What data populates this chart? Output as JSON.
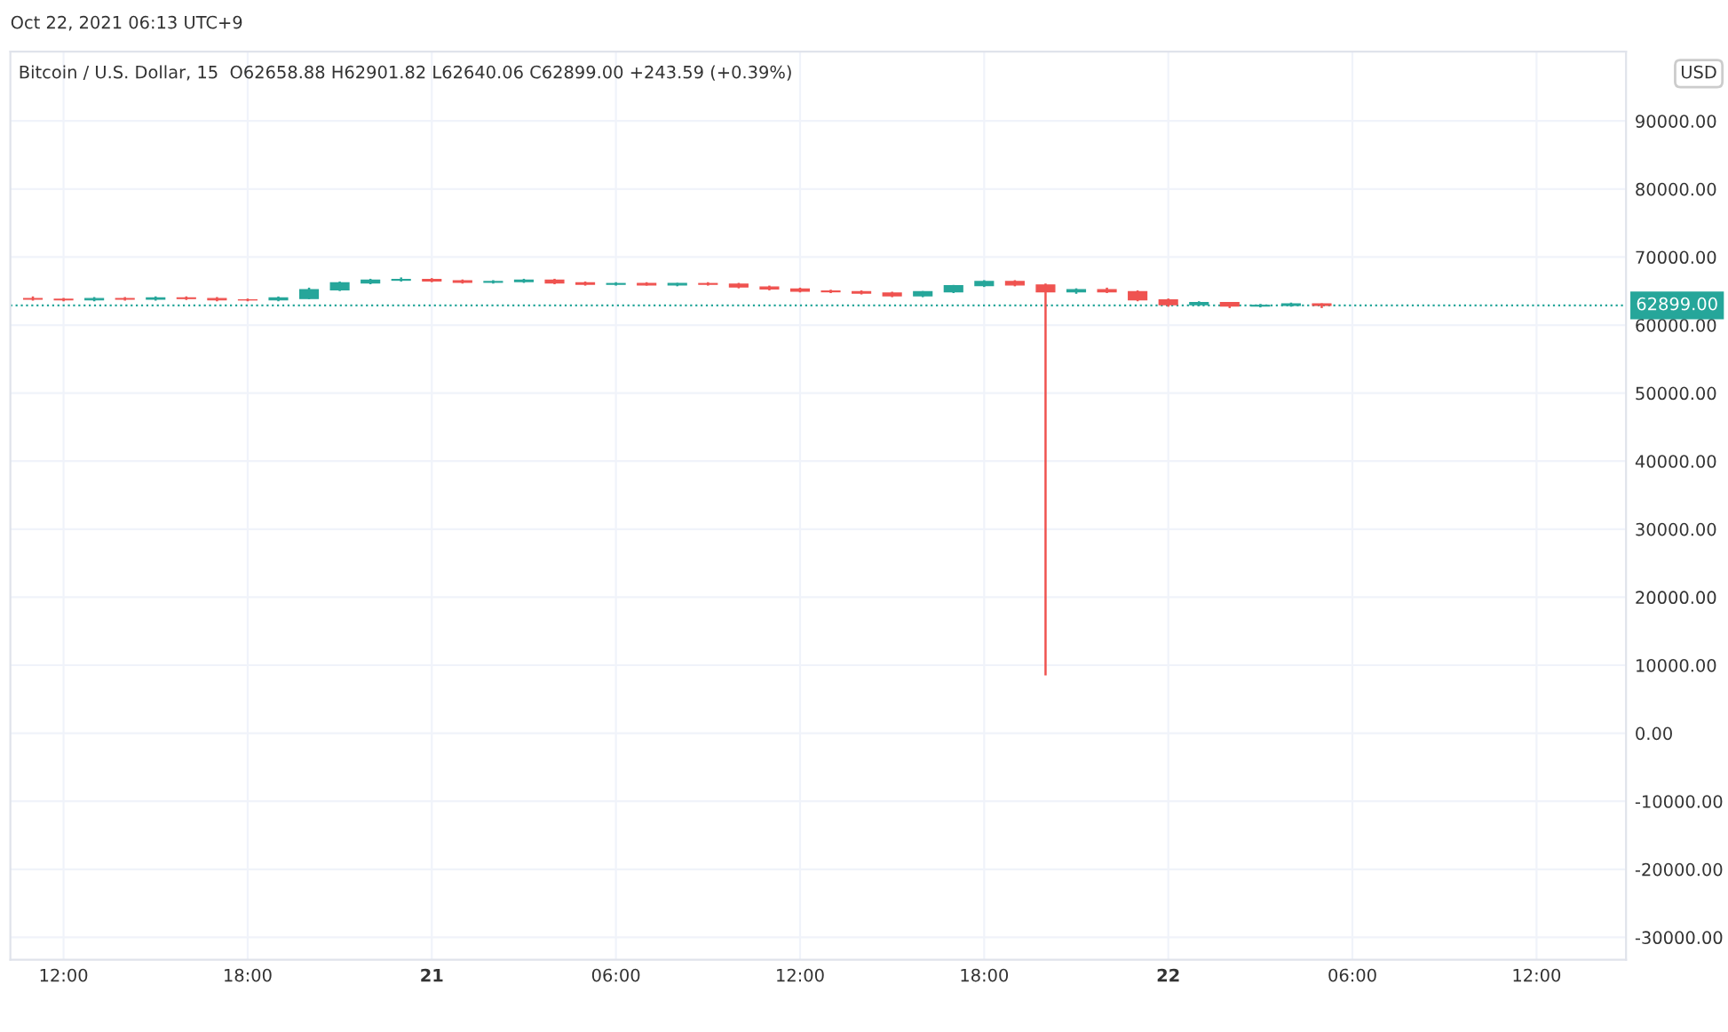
{
  "chart_data": {
    "type": "candlestick",
    "title": "Oct 22, 2021 06:13 UTC+9",
    "subtitle": "Bitcoin / U.S. Dollar, 15  O62658.88 H62901.82 L62640.06 C62899.00 +243.59 (+0.39%)",
    "x": [
      "2021-10-20T11:00",
      "2021-10-20T12:00",
      "2021-10-20T13:00",
      "2021-10-20T14:00",
      "2021-10-20T15:00",
      "2021-10-20T16:00",
      "2021-10-20T17:00",
      "2021-10-20T18:00",
      "2021-10-20T19:00",
      "2021-10-20T20:00",
      "2021-10-20T21:00",
      "2021-10-20T22:00",
      "2021-10-20T23:00",
      "2021-10-21T00:00",
      "2021-10-21T01:00",
      "2021-10-21T02:00",
      "2021-10-21T03:00",
      "2021-10-21T04:00",
      "2021-10-21T05:00",
      "2021-10-21T06:00",
      "2021-10-21T07:00",
      "2021-10-21T08:00",
      "2021-10-21T09:00",
      "2021-10-21T10:00",
      "2021-10-21T11:00",
      "2021-10-21T12:00",
      "2021-10-21T13:00",
      "2021-10-21T14:00",
      "2021-10-21T15:00",
      "2021-10-21T16:00",
      "2021-10-21T17:00",
      "2021-10-21T18:00",
      "2021-10-21T19:00",
      "2021-10-21T20:00",
      "2021-10-21T21:00",
      "2021-10-21T22:00",
      "2021-10-21T23:00",
      "2021-10-22T00:00",
      "2021-10-22T01:00",
      "2021-10-22T02:00",
      "2021-10-22T03:00",
      "2021-10-22T04:00",
      "2021-10-22T05:00"
    ],
    "ohlc": [
      [
        63900,
        64200,
        63600,
        63800
      ],
      [
        63800,
        64000,
        63500,
        63700
      ],
      [
        63700,
        64100,
        63500,
        63900
      ],
      [
        63900,
        64100,
        63600,
        63800
      ],
      [
        63800,
        64200,
        63600,
        64000
      ],
      [
        64000,
        64200,
        63700,
        63900
      ],
      [
        63900,
        64100,
        63500,
        63700
      ],
      [
        63700,
        63900,
        63500,
        63700
      ],
      [
        63700,
        64200,
        63500,
        64000
      ],
      [
        63900,
        65500,
        63800,
        65200
      ],
      [
        65200,
        66400,
        65000,
        66200
      ],
      [
        66200,
        66800,
        66000,
        66600
      ],
      [
        66600,
        67000,
        66400,
        66700
      ],
      [
        66700,
        66900,
        66300,
        66500
      ],
      [
        66500,
        66700,
        66100,
        66300
      ],
      [
        66300,
        66600,
        66100,
        66400
      ],
      [
        66400,
        66800,
        66200,
        66600
      ],
      [
        66600,
        66800,
        66000,
        66200
      ],
      [
        66200,
        66400,
        65800,
        66000
      ],
      [
        66000,
        66300,
        65800,
        66100
      ],
      [
        66100,
        66300,
        65800,
        65900
      ],
      [
        65900,
        66200,
        65700,
        66100
      ],
      [
        66100,
        66300,
        65800,
        66000
      ],
      [
        66000,
        66200,
        65400,
        65600
      ],
      [
        65600,
        65800,
        65100,
        65300
      ],
      [
        65300,
        65500,
        64800,
        65000
      ],
      [
        65000,
        65200,
        64700,
        64900
      ],
      [
        64900,
        65100,
        64500,
        64700
      ],
      [
        64700,
        64900,
        64100,
        64300
      ],
      [
        64300,
        65000,
        64100,
        64900
      ],
      [
        64900,
        65900,
        64700,
        65800
      ],
      [
        65800,
        66600,
        65600,
        66400
      ],
      [
        66400,
        66600,
        65700,
        65900
      ],
      [
        65900,
        66100,
        8500,
        64900
      ],
      [
        64900,
        65400,
        64600,
        65200
      ],
      [
        65200,
        65500,
        64700,
        64900
      ],
      [
        64900,
        65100,
        63500,
        63700
      ],
      [
        63700,
        63900,
        62700,
        63000
      ],
      [
        63000,
        63500,
        62800,
        63300
      ],
      [
        63300,
        63400,
        62500,
        62800
      ],
      [
        62800,
        63100,
        62600,
        62900
      ],
      [
        62900,
        63300,
        62700,
        63100
      ],
      [
        63100,
        63200,
        62500,
        62899
      ]
    ],
    "colors": [
      "#ef5350",
      "#ef5350",
      "#26a69a",
      "#ef5350",
      "#26a69a",
      "#ef5350",
      "#ef5350",
      "#ef5350",
      "#26a69a",
      "#26a69a",
      "#26a69a",
      "#26a69a",
      "#26a69a",
      "#ef5350",
      "#ef5350",
      "#26a69a",
      "#26a69a",
      "#ef5350",
      "#ef5350",
      "#26a69a",
      "#ef5350",
      "#26a69a",
      "#ef5350",
      "#ef5350",
      "#ef5350",
      "#ef5350",
      "#ef5350",
      "#ef5350",
      "#ef5350",
      "#26a69a",
      "#26a69a",
      "#26a69a",
      "#ef5350",
      "#ef5350",
      "#26a69a",
      "#ef5350",
      "#ef5350",
      "#ef5350",
      "#26a69a",
      "#ef5350",
      "#26a69a",
      "#26a69a",
      "#ef5350"
    ],
    "xlim": [
      "2021-10-20T10:16",
      "2021-10-22T14:55"
    ],
    "xticks": [
      {
        "value": "2021-10-20T12:00",
        "label": "12:00"
      },
      {
        "value": "2021-10-20T18:00",
        "label": "18:00"
      },
      {
        "value": "2021-10-21T00:00",
        "label": "21"
      },
      {
        "value": "2021-10-21T06:00",
        "label": "06:00"
      },
      {
        "value": "2021-10-21T12:00",
        "label": "12:00"
      },
      {
        "value": "2021-10-21T18:00",
        "label": "18:00"
      },
      {
        "value": "2021-10-22T00:00",
        "label": "22"
      },
      {
        "value": "2021-10-22T06:00",
        "label": "06:00"
      },
      {
        "value": "2021-10-22T12:00",
        "label": "12:00"
      }
    ],
    "ylim": [
      -33300,
      100200
    ],
    "yticks": [
      {
        "value": 90000,
        "label": "90000.00"
      },
      {
        "value": 80000,
        "label": "80000.00"
      },
      {
        "value": 70000,
        "label": "70000.00"
      },
      {
        "value": 60000,
        "label": "60000.00"
      },
      {
        "value": 50000,
        "label": "50000.00"
      },
      {
        "value": 40000,
        "label": "40000.00"
      },
      {
        "value": 30000,
        "label": "30000.00"
      },
      {
        "value": 20000,
        "label": "20000.00"
      },
      {
        "value": 10000,
        "label": "10000.00"
      },
      {
        "value": 0,
        "label": "0.00"
      },
      {
        "value": -10000,
        "label": "-10000.00"
      },
      {
        "value": -20000,
        "label": "-20000.00"
      },
      {
        "value": -30000,
        "label": "-30000.00"
      }
    ],
    "ylabel": "USD",
    "ref_lines": [
      {
        "axis": "y",
        "value": 62899,
        "label": "62899.00",
        "color": "#26a69a",
        "line_style": "dotted"
      }
    ],
    "grid": true
  }
}
